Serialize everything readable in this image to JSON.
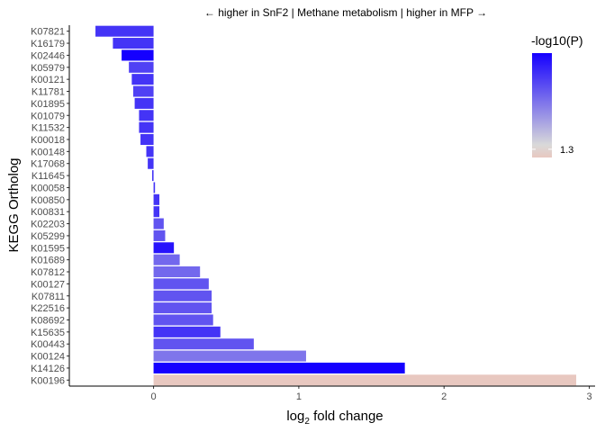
{
  "chart_data": {
    "type": "bar",
    "orientation": "horizontal",
    "title": "← higher in SnF2 | Methane metabolism | higher in MFP →",
    "xlabel_base": "log",
    "xlabel_sub": "2",
    "xlabel_rest": " fold change",
    "ylabel": "KEGG Ortholog",
    "xlim": [
      -0.58,
      3.04
    ],
    "xticks": [
      0,
      1,
      2,
      3
    ],
    "categories": [
      "K07821",
      "K16179",
      "K02446",
      "K05979",
      "K00121",
      "K11781",
      "K01895",
      "K01079",
      "K11532",
      "K00018",
      "K00148",
      "K17068",
      "K11645",
      "K00058",
      "K00850",
      "K00831",
      "K02203",
      "K05299",
      "K01595",
      "K01689",
      "K07812",
      "K00127",
      "K07811",
      "K22516",
      "K08692",
      "K15635",
      "K00443",
      "K00124",
      "K14126",
      "K00196"
    ],
    "values": [
      -0.4,
      -0.28,
      -0.22,
      -0.17,
      -0.15,
      -0.14,
      -0.13,
      -0.1,
      -0.1,
      -0.09,
      -0.05,
      -0.04,
      -0.01,
      0.01,
      0.04,
      0.04,
      0.07,
      0.08,
      0.14,
      0.18,
      0.32,
      0.38,
      0.4,
      0.4,
      0.41,
      0.46,
      0.69,
      1.05,
      1.73,
      2.91
    ],
    "neg_log10_p": [
      4.0,
      4.0,
      4.8,
      3.8,
      4.0,
      3.8,
      4.0,
      4.0,
      4.0,
      4.0,
      4.0,
      4.0,
      4.0,
      4.0,
      4.0,
      4.0,
      3.5,
      3.5,
      4.5,
      3.2,
      3.2,
      3.5,
      3.5,
      3.5,
      3.5,
      4.0,
      3.5,
      3.0,
      4.8,
      1.0
    ],
    "legend": {
      "title": "-log10(P)",
      "placement": "top-right",
      "tick_values": [
        1.3
      ],
      "tick_labels": [
        "1.3"
      ],
      "range": [
        1.0,
        4.8
      ],
      "color_low": "#e8c8c0",
      "color_mid": "#d9d9d9",
      "color_high": "#1500ff"
    },
    "grid": false
  }
}
